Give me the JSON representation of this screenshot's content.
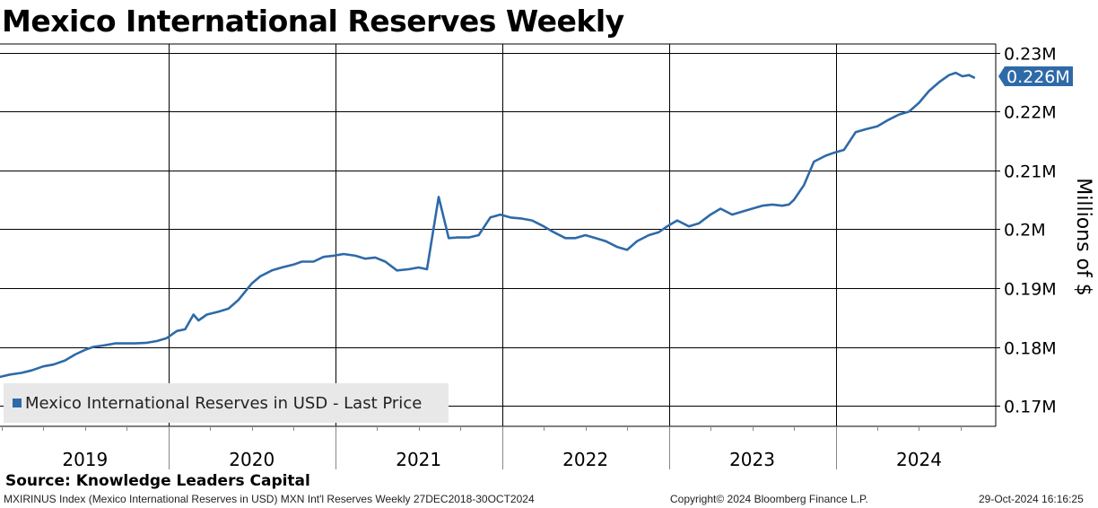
{
  "chart_data": {
    "type": "line",
    "title": "Mexico International Reserves Weekly",
    "ylabel": "Millions of $",
    "xlabel": "",
    "ylim": [
      0.1665,
      0.2315
    ],
    "xlim": [
      2018.99,
      2024.96
    ],
    "y_ticks": [
      {
        "value": 0.23,
        "label": "0.23M"
      },
      {
        "value": 0.22,
        "label": "0.22M"
      },
      {
        "value": 0.21,
        "label": "0.21M"
      },
      {
        "value": 0.2,
        "label": "0.2M"
      },
      {
        "value": 0.19,
        "label": "0.19M"
      },
      {
        "value": 0.18,
        "label": "0.18M"
      },
      {
        "value": 0.17,
        "label": "0.17M"
      }
    ],
    "year_labels": [
      {
        "year": 2019,
        "label": "2019"
      },
      {
        "year": 2020,
        "label": "2020"
      },
      {
        "year": 2021,
        "label": "2021"
      },
      {
        "year": 2022,
        "label": "2022"
      },
      {
        "year": 2023,
        "label": "2023"
      },
      {
        "year": 2024,
        "label": "2024"
      }
    ],
    "last_price_label": "0.226M",
    "last_price_value": 0.226,
    "legend": "Mexico International Reserves in USD - Last Price",
    "series": [
      {
        "name": "Mexico International Reserves in USD - Last Price",
        "color": "#2e6aa8",
        "x": [
          2018.99,
          2019.05,
          2019.12,
          2019.18,
          2019.25,
          2019.31,
          2019.38,
          2019.44,
          2019.5,
          2019.55,
          2019.62,
          2019.68,
          2019.75,
          2019.8,
          2019.87,
          2019.93,
          2019.99,
          2020.05,
          2020.1,
          2020.15,
          2020.18,
          2020.23,
          2020.3,
          2020.36,
          2020.42,
          2020.5,
          2020.55,
          2020.62,
          2020.68,
          2020.75,
          2020.8,
          2020.87,
          2020.93,
          2020.99,
          2021.05,
          2021.12,
          2021.18,
          2021.24,
          2021.3,
          2021.37,
          2021.44,
          2021.5,
          2021.55,
          2021.62,
          2021.68,
          2021.73,
          2021.8,
          2021.86,
          2021.93,
          2021.99,
          2022.05,
          2022.12,
          2022.18,
          2022.25,
          2022.31,
          2022.38,
          2022.44,
          2022.5,
          2022.56,
          2022.62,
          2022.69,
          2022.75,
          2022.81,
          2022.88,
          2022.94,
          2022.99,
          2023.05,
          2023.12,
          2023.18,
          2023.25,
          2023.31,
          2023.38,
          2023.44,
          2023.5,
          2023.56,
          2023.62,
          2023.68,
          2023.72,
          2023.75,
          2023.81,
          2023.87,
          2023.94,
          2023.99,
          2024.05,
          2024.12,
          2024.18,
          2024.25,
          2024.31,
          2024.38,
          2024.44,
          2024.5,
          2024.56,
          2024.62,
          2024.68,
          2024.72,
          2024.76,
          2024.8,
          2024.83
        ],
        "values": [
          0.1749,
          0.1753,
          0.1756,
          0.176,
          0.1767,
          0.177,
          0.1777,
          0.1787,
          0.1795,
          0.18,
          0.1803,
          0.1806,
          0.1806,
          0.1806,
          0.1807,
          0.181,
          0.1815,
          0.1827,
          0.183,
          0.1855,
          0.1845,
          0.1855,
          0.186,
          0.1865,
          0.188,
          0.1908,
          0.192,
          0.193,
          0.1935,
          0.194,
          0.1945,
          0.1945,
          0.1953,
          0.1955,
          0.1958,
          0.1955,
          0.195,
          0.1952,
          0.1945,
          0.193,
          0.1932,
          0.1935,
          0.1932,
          0.2055,
          0.1985,
          0.1986,
          0.1986,
          0.199,
          0.202,
          0.2025,
          0.202,
          0.2018,
          0.2015,
          0.2005,
          0.1995,
          0.1985,
          0.1985,
          0.199,
          0.1985,
          0.198,
          0.197,
          0.1965,
          0.198,
          0.199,
          0.1995,
          0.2005,
          0.2015,
          0.2005,
          0.201,
          0.2025,
          0.2035,
          0.2025,
          0.203,
          0.2035,
          0.204,
          0.2042,
          0.204,
          0.2042,
          0.205,
          0.2075,
          0.2115,
          0.2125,
          0.213,
          0.2135,
          0.2165,
          0.217,
          0.2175,
          0.2185,
          0.2195,
          0.22,
          0.2215,
          0.2235,
          0.225,
          0.2262,
          0.2266,
          0.226,
          0.2262,
          0.2258
        ]
      }
    ]
  },
  "header": {
    "title": "Mexico International Reserves Weekly"
  },
  "source": "Source: Knowledge Leaders Capital",
  "footer": {
    "left": "MXIRINUS Index (Mexico International Reserves in USD) MXN Int'l Reserves  Weekly 27DEC2018-30OCT2024",
    "center": "Copyright© 2024 Bloomberg Finance L.P.",
    "right": "29-Oct-2024 16:16:25"
  },
  "colors": {
    "line": "#2e6aa8",
    "grid": "#000000",
    "legend_bg": "#e8e8e8"
  }
}
